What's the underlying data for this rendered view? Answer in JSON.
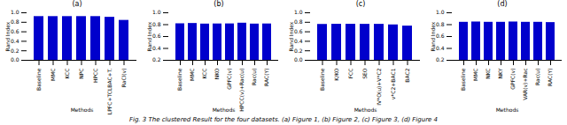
{
  "chart_data": [
    {
      "type": "bar",
      "title": "(a)",
      "xlabel": "Methods",
      "ylabel": "Rand Index",
      "color": "#0000cc",
      "categories": [
        "Baseline",
        "MMC",
        "KCC",
        "NPC",
        "HPCC",
        "LPFC+TCLBAC+T.",
        "RaCl(v)"
      ],
      "values": [
        0.92,
        0.92,
        0.92,
        0.92,
        0.92,
        0.905,
        0.84
      ],
      "ylim": [
        0.0,
        1.0
      ],
      "yticks": [
        {
          "value": 0.0,
          "label": "0.0"
        },
        0.2,
        0.4,
        0.6,
        0.8,
        {
          "value": 1.0,
          "label": "1.0"
        }
      ]
    },
    {
      "type": "bar",
      "title": "(b)",
      "xlabel": "Methods",
      "ylabel": "Rand Index",
      "color": "#0000cc",
      "categories": [
        "Baseline",
        "MMC",
        "KCC",
        "NKO",
        "GPFC(v)",
        "HPCC(v)+Rac(u)",
        "Rac(u)",
        "RAC(Y)"
      ],
      "values": [
        0.815,
        0.82,
        0.81,
        0.812,
        0.813,
        0.825,
        0.81,
        0.812
      ],
      "ylim": [
        0.2,
        1.0
      ],
      "yticks": [
        0.2,
        0.4,
        0.6,
        0.8,
        {
          "value": 1.0,
          "label": "1.0"
        }
      ]
    },
    {
      "type": "bar",
      "title": "(c)",
      "xlabel": "Methods",
      "ylabel": "Rand Index",
      "color": "#0000cc",
      "categories": [
        "Baseline",
        "K/KO",
        "FCC",
        "SEO",
        "IV*O(u)+V*C2",
        "v*C2+BAC1",
        "BAC2"
      ],
      "values": [
        0.755,
        0.758,
        0.758,
        0.757,
        0.757,
        0.745,
        0.72
      ],
      "ylim": [
        0.0,
        1.0
      ],
      "yticks": [
        {
          "value": 0.0,
          "label": "0.0"
        },
        0.2,
        0.4,
        0.6,
        0.8,
        {
          "value": 1.0,
          "label": "1.0"
        }
      ]
    },
    {
      "type": "bar",
      "title": "(d)",
      "xlabel": "Methods",
      "ylabel": "Rand Index",
      "color": "#0000cc",
      "categories": [
        "Baseline",
        "MMC",
        "NKC",
        "NKY",
        "GPFC(v)",
        "VAR(v)+Rac",
        "Rac(u)",
        "RAC(Y)"
      ],
      "values": [
        0.84,
        0.845,
        0.84,
        0.84,
        0.845,
        0.84,
        0.84,
        0.835
      ],
      "ylim": [
        0.2,
        1.0
      ],
      "yticks": [
        0.2,
        0.4,
        0.6,
        0.8,
        {
          "value": 1.0,
          "label": "1.0"
        }
      ]
    }
  ],
  "caption": "Fig. 3  The clustered Result for the four datasets. (a) Figure 1, (b) Figure 2, (c) Figure 3, (d) Figure 4"
}
